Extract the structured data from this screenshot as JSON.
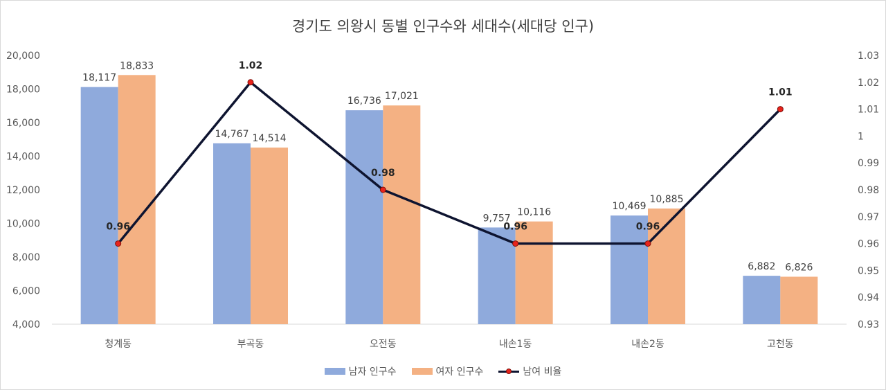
{
  "chart_data": {
    "type": "bar+line",
    "title": "경기도 의왕시 동별 인구수와 세대수(세대당 인구)",
    "categories": [
      "청계동",
      "부곡동",
      "오전동",
      "내손1동",
      "내손2동",
      "고천동"
    ],
    "series": [
      {
        "name": "남자 인구수",
        "type": "bar",
        "axis": "left",
        "color": "#8faadc",
        "values": [
          18117,
          14767,
          16736,
          9757,
          10469,
          6882
        ],
        "labels": [
          "18,117",
          "14,767",
          "16,736",
          "9,757",
          "10,469",
          "6,882"
        ]
      },
      {
        "name": "여자 인구수",
        "type": "bar",
        "axis": "left",
        "color": "#f4b183",
        "values": [
          18833,
          14514,
          17021,
          10116,
          10885,
          6826
        ],
        "labels": [
          "18,833",
          "14,514",
          "17,021",
          "10,116",
          "10,885",
          "6,826"
        ]
      },
      {
        "name": "남여 비율",
        "type": "line",
        "axis": "right",
        "color": "#0e1430",
        "marker_color": "#e8231b",
        "values": [
          0.96,
          1.02,
          0.98,
          0.96,
          0.96,
          1.01
        ],
        "labels": [
          "0.96",
          "1.02",
          "0.98",
          "0.96",
          "0.96",
          "1.01"
        ]
      }
    ],
    "y_left": {
      "min": 4000,
      "max": 20000,
      "step": 2000,
      "ticks": [
        "4,000",
        "6,000",
        "8,000",
        "10,000",
        "12,000",
        "14,000",
        "16,000",
        "18,000",
        "20,000"
      ]
    },
    "y_right": {
      "min": 0.93,
      "max": 1.03,
      "step": 0.01,
      "ticks": [
        "0.93",
        "0.94",
        "0.95",
        "0.96",
        "0.97",
        "0.98",
        "0.99",
        "1",
        "1.01",
        "1.02",
        "1.03"
      ]
    },
    "grid": false,
    "legend_position": "bottom"
  }
}
